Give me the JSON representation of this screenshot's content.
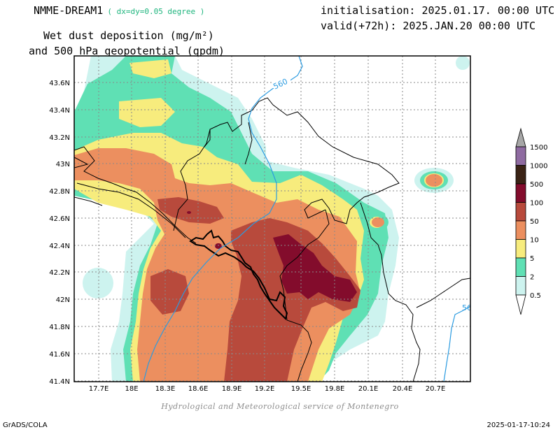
{
  "header": {
    "model": "NMME-DREAM1",
    "resolution": "( dx=dy=0.05 degree )",
    "title_line1": "Wet dust deposition (mg/m²)",
    "title_line2": "and 500 hPa geopotential (gpdm)",
    "initialisation": "initialisation: 2025.01.17. 00:00 UTC",
    "valid": "valid(+72h): 2025.JAN.20 00:00 UTC"
  },
  "map": {
    "lon_ticks": [
      "17.7E",
      "18E",
      "18.3E",
      "18.6E",
      "18.9E",
      "19.2E",
      "19.5E",
      "19.8E",
      "20.1E",
      "20.4E",
      "20.7E"
    ],
    "lat_ticks": [
      "43.6N",
      "43.4N",
      "43.2N",
      "43N",
      "42.8N",
      "42.6N",
      "42.4N",
      "42.2N",
      "42N",
      "41.8N",
      "41.6N",
      "41.4N"
    ],
    "contour_labels": [
      "560",
      "56"
    ],
    "contour_color": "#2b9be0"
  },
  "colorbar": {
    "labels": [
      "0.5",
      "2",
      "5",
      "10",
      "50",
      "100",
      "500",
      "1000",
      "1500"
    ],
    "colors": [
      "#cdf3ef",
      "#5fe0b4",
      "#f7ec7d",
      "#ec8f5f",
      "#b84a3c",
      "#830c2c",
      "#3a2315",
      "#8f6ba1",
      "#a7a7a7"
    ]
  },
  "footer": {
    "credit": "Hydrological and Meteorological service of Montenegro",
    "software": "GrADS/COLA",
    "timestamp": "2025-01-17-10:24"
  }
}
